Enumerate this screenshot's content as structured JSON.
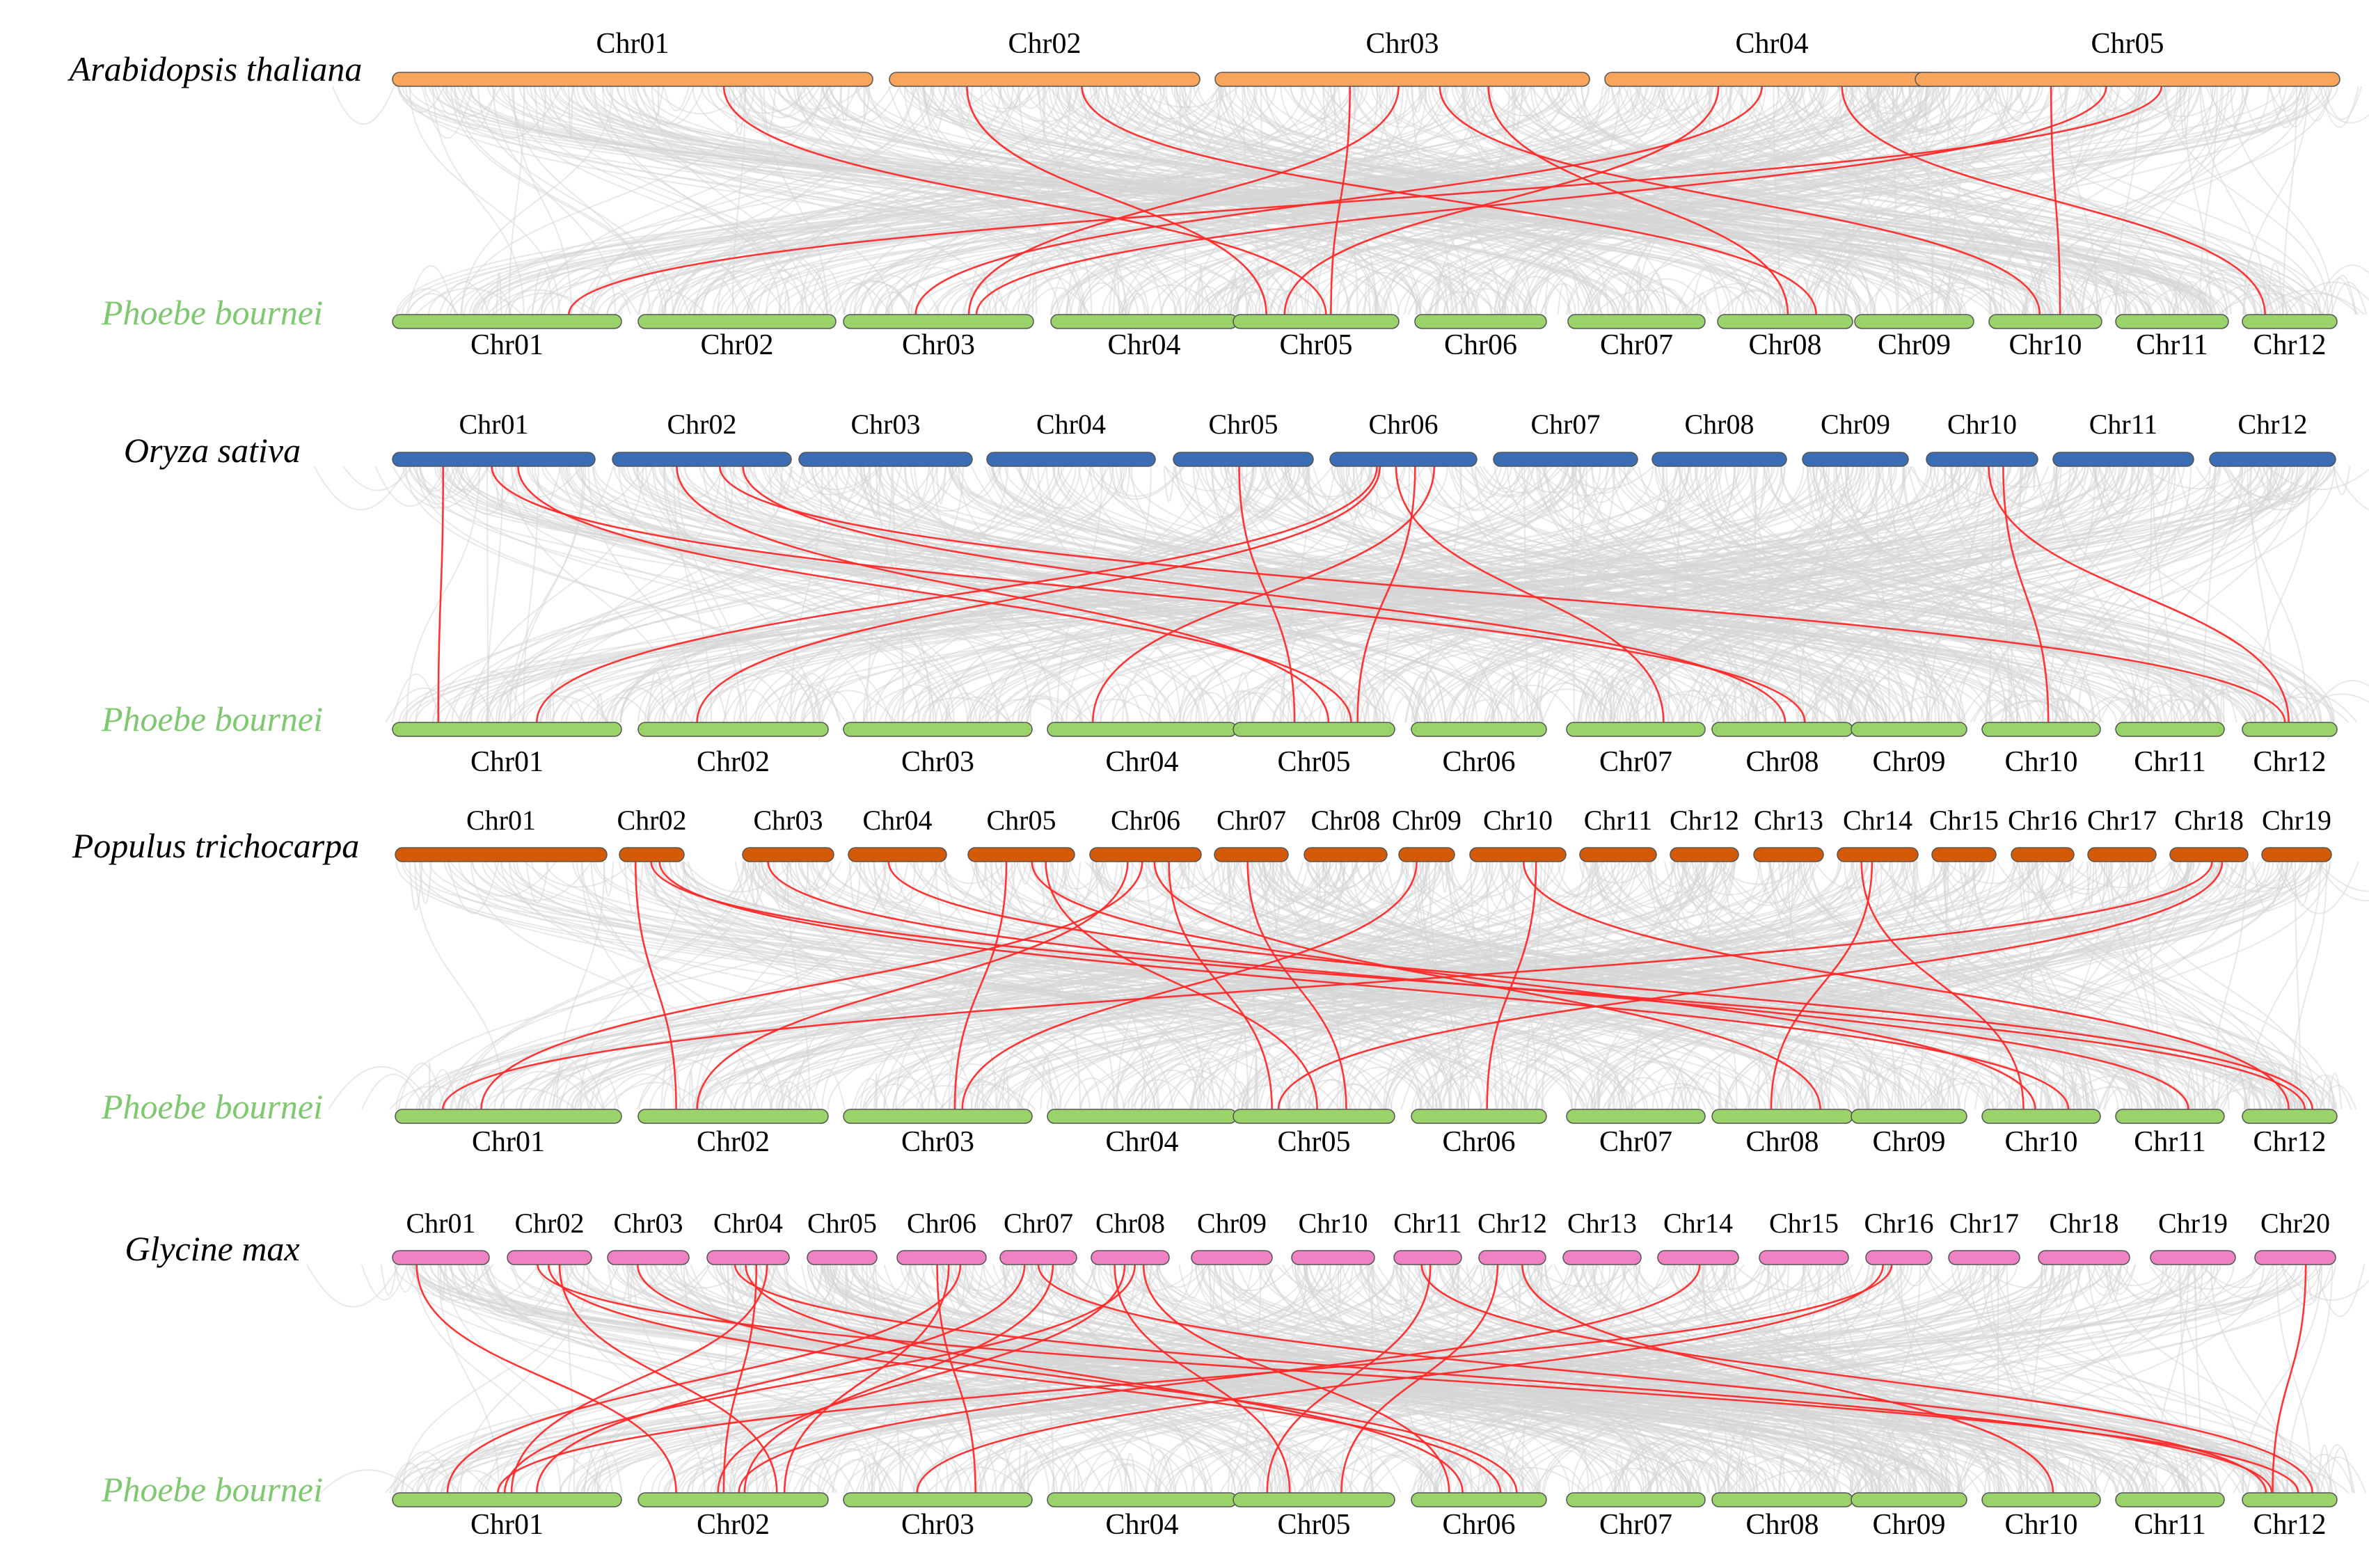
{
  "phoebe": {
    "name": "Phoebe bournei",
    "color": "#99d36a",
    "label_color": "#7ec86f",
    "chromosomes": [
      "Chr01",
      "Chr02",
      "Chr03",
      "Chr04",
      "Chr05",
      "Chr06",
      "Chr07",
      "Chr08",
      "Chr09",
      "Chr10",
      "Chr11",
      "Chr12"
    ]
  },
  "panels": [
    {
      "species": "Arabidopsis thaliana",
      "color": "#f9a55c",
      "chromosomes": [
        "Chr01",
        "Chr02",
        "Chr03",
        "Chr04",
        "Chr05"
      ],
      "links": [
        [
          1,
          4
        ],
        [
          1,
          7
        ],
        [
          2,
          2
        ],
        [
          2,
          4
        ],
        [
          2,
          7
        ],
        [
          2,
          9
        ],
        [
          3,
          2
        ],
        [
          3,
          4
        ],
        [
          3,
          11
        ],
        [
          4,
          0
        ],
        [
          4,
          2
        ],
        [
          4,
          9
        ],
        [
          0,
          4
        ]
      ]
    },
    {
      "species": "Oryza sativa",
      "color": "#3b6db5",
      "chromosomes": [
        "Chr01",
        "Chr02",
        "Chr03",
        "Chr04",
        "Chr05",
        "Chr06",
        "Chr07",
        "Chr08",
        "Chr09",
        "Chr10",
        "Chr11",
        "Chr12"
      ],
      "links": [
        [
          0,
          0
        ],
        [
          0,
          4
        ],
        [
          0,
          7
        ],
        [
          1,
          4
        ],
        [
          1,
          7
        ],
        [
          1,
          11
        ],
        [
          4,
          4
        ],
        [
          5,
          1
        ],
        [
          5,
          3
        ],
        [
          5,
          4
        ],
        [
          5,
          6
        ],
        [
          5,
          0
        ],
        [
          9,
          9
        ],
        [
          9,
          11
        ]
      ]
    },
    {
      "species": "Populus trichocarpa",
      "color": "#d35a06",
      "chromosomes": [
        "Chr01",
        "Chr02",
        "Chr03",
        "Chr04",
        "Chr05",
        "Chr06",
        "Chr07",
        "Chr08",
        "Chr09",
        "Chr10",
        "Chr11",
        "Chr12",
        "Chr13",
        "Chr14",
        "Chr15",
        "Chr16",
        "Chr17",
        "Chr18",
        "Chr19"
      ],
      "links": [
        [
          1,
          1
        ],
        [
          1,
          9
        ],
        [
          1,
          11
        ],
        [
          4,
          2
        ],
        [
          4,
          4
        ],
        [
          4,
          9
        ],
        [
          5,
          0
        ],
        [
          5,
          1
        ],
        [
          5,
          4
        ],
        [
          5,
          7
        ],
        [
          6,
          4
        ],
        [
          8,
          2
        ],
        [
          9,
          5
        ],
        [
          9,
          11
        ],
        [
          13,
          7
        ],
        [
          13,
          9
        ],
        [
          17,
          4
        ],
        [
          17,
          0
        ],
        [
          3,
          11
        ],
        [
          2,
          10
        ]
      ]
    },
    {
      "species": "Glycine max",
      "color": "#f082c4",
      "chromosomes": [
        "Chr01",
        "Chr02",
        "Chr03",
        "Chr04",
        "Chr05",
        "Chr06",
        "Chr07",
        "Chr08",
        "Chr09",
        "Chr10",
        "Chr11",
        "Chr12",
        "Chr13",
        "Chr14",
        "Chr15",
        "Chr16",
        "Chr17",
        "Chr18",
        "Chr19",
        "Chr20"
      ],
      "links": [
        [
          0,
          1
        ],
        [
          1,
          1
        ],
        [
          1,
          5
        ],
        [
          1,
          11
        ],
        [
          3,
          0
        ],
        [
          3,
          1
        ],
        [
          3,
          5
        ],
        [
          3,
          11
        ],
        [
          5,
          0
        ],
        [
          5,
          1
        ],
        [
          5,
          2
        ],
        [
          6,
          0
        ],
        [
          6,
          1
        ],
        [
          7,
          0
        ],
        [
          7,
          1
        ],
        [
          7,
          4
        ],
        [
          7,
          5
        ],
        [
          10,
          4
        ],
        [
          10,
          11
        ],
        [
          11,
          4
        ],
        [
          11,
          9
        ],
        [
          13,
          1
        ],
        [
          15,
          0
        ],
        [
          15,
          2
        ],
        [
          19,
          11
        ],
        [
          6,
          11
        ],
        [
          2,
          5
        ]
      ]
    }
  ]
}
